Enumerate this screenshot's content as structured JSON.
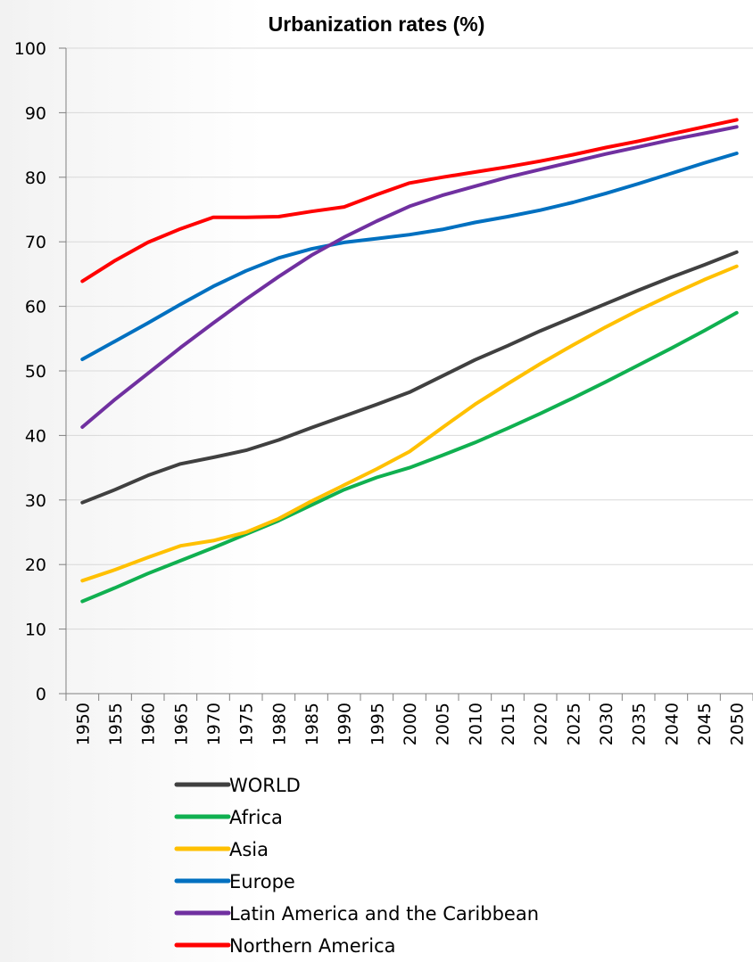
{
  "chart_data": {
    "type": "line",
    "title": "Urbanization rates (%)",
    "xlabel": "",
    "ylabel": "",
    "ylim": [
      0,
      100
    ],
    "yticks": [
      0,
      10,
      20,
      30,
      40,
      50,
      60,
      70,
      80,
      90,
      100
    ],
    "grid": "horizontal",
    "legend": "bottom",
    "x": [
      "1950",
      "1955",
      "1960",
      "1965",
      "1970",
      "1975",
      "1980",
      "1985",
      "1990",
      "1995",
      "2000",
      "2005",
      "2010",
      "2015",
      "2020",
      "2025",
      "2030",
      "2035",
      "2040",
      "2045",
      "2050"
    ],
    "series": [
      {
        "name": "WORLD",
        "color": "#404040",
        "values": [
          29.6,
          31.6,
          33.8,
          35.6,
          36.6,
          37.7,
          39.3,
          41.2,
          43.0,
          44.8,
          46.7,
          49.2,
          51.7,
          53.9,
          56.2,
          58.3,
          60.4,
          62.5,
          64.5,
          66.4,
          68.4
        ]
      },
      {
        "name": "Africa",
        "color": "#10b050",
        "values": [
          14.3,
          16.4,
          18.6,
          20.6,
          22.6,
          24.7,
          26.8,
          29.2,
          31.6,
          33.5,
          35.0,
          36.9,
          38.9,
          41.1,
          43.4,
          45.8,
          48.3,
          50.9,
          53.5,
          56.2,
          59.0
        ]
      },
      {
        "name": "Asia",
        "color": "#ffc000",
        "values": [
          17.5,
          19.2,
          21.1,
          22.9,
          23.7,
          25.0,
          27.1,
          29.8,
          32.3,
          34.8,
          37.5,
          41.2,
          44.8,
          48.0,
          51.1,
          54.0,
          56.8,
          59.4,
          61.8,
          64.1,
          66.2
        ]
      },
      {
        "name": "Europe",
        "color": "#0070c0",
        "values": [
          51.8,
          54.6,
          57.4,
          60.3,
          63.1,
          65.5,
          67.5,
          68.9,
          69.9,
          70.5,
          71.1,
          71.9,
          73.0,
          73.9,
          74.9,
          76.1,
          77.5,
          79.0,
          80.6,
          82.2,
          83.7
        ]
      },
      {
        "name": "Latin America and the Caribbean",
        "color": "#7030a0",
        "values": [
          41.3,
          45.6,
          49.6,
          53.6,
          57.4,
          61.1,
          64.6,
          67.9,
          70.7,
          73.2,
          75.5,
          77.2,
          78.6,
          80.0,
          81.2,
          82.4,
          83.6,
          84.7,
          85.8,
          86.8,
          87.8
        ]
      },
      {
        "name": "Northern America",
        "color": "#ff0000",
        "values": [
          63.9,
          67.1,
          69.9,
          72.0,
          73.8,
          73.8,
          73.9,
          74.7,
          75.4,
          77.3,
          79.1,
          80.0,
          80.8,
          81.6,
          82.5,
          83.5,
          84.6,
          85.6,
          86.7,
          87.8,
          88.9
        ]
      }
    ]
  }
}
